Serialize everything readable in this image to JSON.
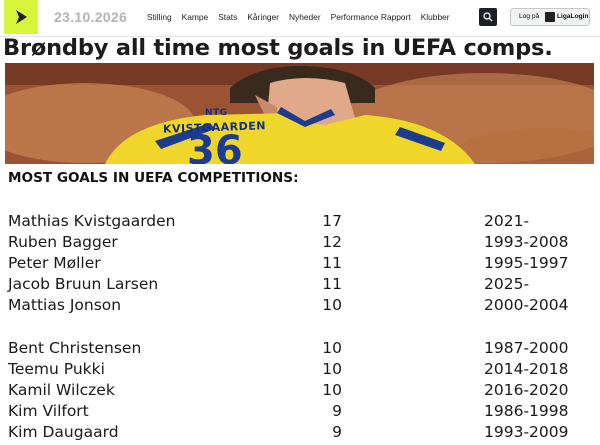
{
  "header": {
    "date": "23.10.2026",
    "nav_items": [
      "Stilling",
      "Kampe",
      "Stats",
      "Kåringer",
      "Nyheder",
      "Performance Rapport",
      "Klubber"
    ],
    "login_prefix": "Log på",
    "login_brand": "LigaLogin",
    "logo_icon": "play-arrow-icon",
    "accent_color": "#d8f53c"
  },
  "article": {
    "title": "Brøndby all time most goals in UEFA comps.",
    "image_sponsor": "NTG",
    "image_player_name": "KVISTGAARDEN",
    "image_number": "36"
  },
  "table": {
    "heading": "MOST GOALS IN UEFA COMPETITIONS:",
    "rows": [
      {
        "name": "Mathias Kvistgaarden",
        "goals": "17",
        "years": "2021-"
      },
      {
        "name": "Ruben Bagger",
        "goals": "12",
        "years": "1993-2008"
      },
      {
        "name": "Peter Møller",
        "goals": "11",
        "years": "1995-1997"
      },
      {
        "name": "Jacob Bruun Larsen",
        "goals": "11",
        "years": "2025-"
      },
      {
        "name": "Mattias Jonson",
        "goals": "10",
        "years": "2000-2004"
      },
      {
        "name": "Bent Christensen",
        "goals": "10",
        "years": "1987-2000"
      },
      {
        "name": "Teemu Pukki",
        "goals": "10",
        "years": "2014-2018"
      },
      {
        "name": "Kamil Wilczek",
        "goals": "10",
        "years": "2016-2020"
      },
      {
        "name": "Kim Vilfort",
        "goals": "9",
        "years": "1986-1998"
      },
      {
        "name": "Kim Daugaard",
        "goals": "9",
        "years": "1993-2009"
      }
    ]
  }
}
